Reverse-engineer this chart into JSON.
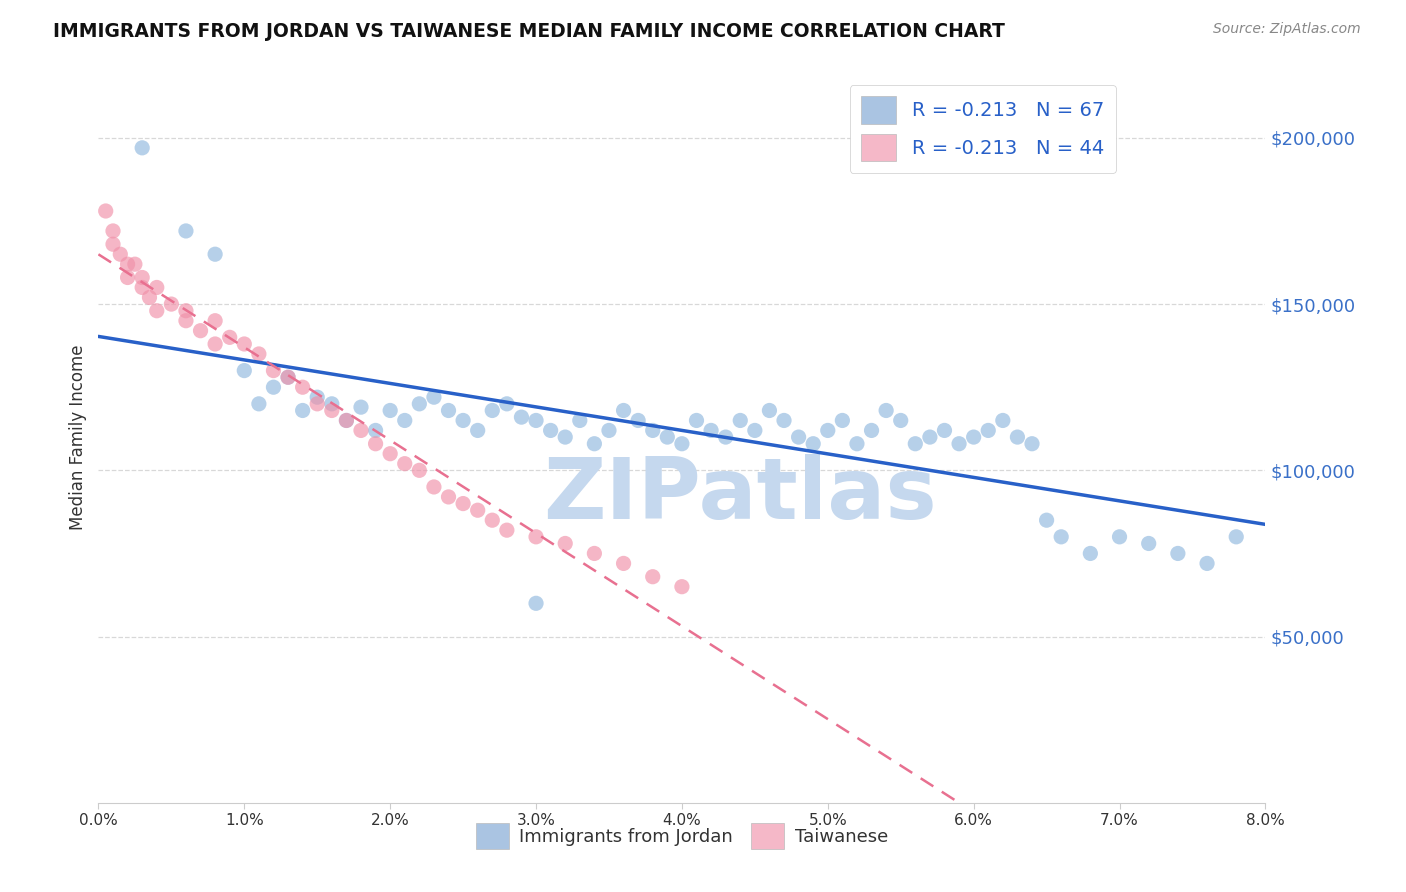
{
  "title": "IMMIGRANTS FROM JORDAN VS TAIWANESE MEDIAN FAMILY INCOME CORRELATION CHART",
  "source": "Source: ZipAtlas.com",
  "ylabel": "Median Family Income",
  "legend_label1": "R = -0.213   N = 67",
  "legend_label2": "R = -0.213   N = 44",
  "legend_color1": "#aac4e2",
  "legend_color2": "#f5b8c8",
  "scatter_color1": "#90b8de",
  "scatter_color2": "#f090a8",
  "trendline1_color": "#2860c8",
  "trendline2_color": "#e87090",
  "watermark_text": "ZIPatlas",
  "watermark_color": "#c5d8ee",
  "background_color": "#ffffff",
  "grid_color": "#d8d8d8",
  "xmin": 0.0,
  "xmax": 0.08,
  "ymin": 0,
  "ymax": 220000,
  "jordan_x": [
    0.003,
    0.006,
    0.008,
    0.01,
    0.011,
    0.012,
    0.013,
    0.014,
    0.015,
    0.016,
    0.017,
    0.018,
    0.019,
    0.02,
    0.021,
    0.022,
    0.023,
    0.024,
    0.025,
    0.026,
    0.027,
    0.028,
    0.029,
    0.03,
    0.031,
    0.032,
    0.033,
    0.034,
    0.035,
    0.036,
    0.037,
    0.038,
    0.039,
    0.04,
    0.041,
    0.042,
    0.043,
    0.044,
    0.045,
    0.046,
    0.047,
    0.048,
    0.049,
    0.05,
    0.051,
    0.052,
    0.053,
    0.054,
    0.055,
    0.056,
    0.057,
    0.058,
    0.059,
    0.06,
    0.061,
    0.062,
    0.063,
    0.064,
    0.065,
    0.066,
    0.068,
    0.07,
    0.072,
    0.074,
    0.076,
    0.078,
    0.03
  ],
  "jordan_y": [
    197000,
    172000,
    165000,
    130000,
    120000,
    125000,
    128000,
    118000,
    122000,
    120000,
    115000,
    119000,
    112000,
    118000,
    115000,
    120000,
    122000,
    118000,
    115000,
    112000,
    118000,
    120000,
    116000,
    115000,
    112000,
    110000,
    115000,
    108000,
    112000,
    118000,
    115000,
    112000,
    110000,
    108000,
    115000,
    112000,
    110000,
    115000,
    112000,
    118000,
    115000,
    110000,
    108000,
    112000,
    115000,
    108000,
    112000,
    118000,
    115000,
    108000,
    110000,
    112000,
    108000,
    110000,
    112000,
    115000,
    110000,
    108000,
    85000,
    80000,
    75000,
    80000,
    78000,
    75000,
    72000,
    80000,
    60000
  ],
  "taiwanese_x": [
    0.0005,
    0.001,
    0.001,
    0.0015,
    0.002,
    0.002,
    0.0025,
    0.003,
    0.003,
    0.0035,
    0.004,
    0.004,
    0.005,
    0.006,
    0.006,
    0.007,
    0.008,
    0.008,
    0.009,
    0.01,
    0.011,
    0.012,
    0.013,
    0.014,
    0.015,
    0.016,
    0.017,
    0.018,
    0.019,
    0.02,
    0.021,
    0.022,
    0.023,
    0.024,
    0.025,
    0.026,
    0.027,
    0.028,
    0.03,
    0.032,
    0.034,
    0.036,
    0.038,
    0.04
  ],
  "taiwanese_y": [
    178000,
    172000,
    168000,
    165000,
    162000,
    158000,
    162000,
    158000,
    155000,
    152000,
    148000,
    155000,
    150000,
    148000,
    145000,
    142000,
    138000,
    145000,
    140000,
    138000,
    135000,
    130000,
    128000,
    125000,
    120000,
    118000,
    115000,
    112000,
    108000,
    105000,
    102000,
    100000,
    95000,
    92000,
    90000,
    88000,
    85000,
    82000,
    80000,
    78000,
    75000,
    72000,
    68000,
    65000
  ],
  "ytick_vals": [
    50000,
    100000,
    150000,
    200000
  ],
  "ytick_labels": [
    "$50,000",
    "$100,000",
    "$150,000",
    "$200,000"
  ],
  "xtick_vals": [
    0.0,
    0.01,
    0.02,
    0.03,
    0.04,
    0.05,
    0.06,
    0.07,
    0.08
  ],
  "xtick_labels": [
    "0.0%",
    "1.0%",
    "2.0%",
    "3.0%",
    "4.0%",
    "5.0%",
    "6.0%",
    "7.0%",
    "8.0%"
  ]
}
